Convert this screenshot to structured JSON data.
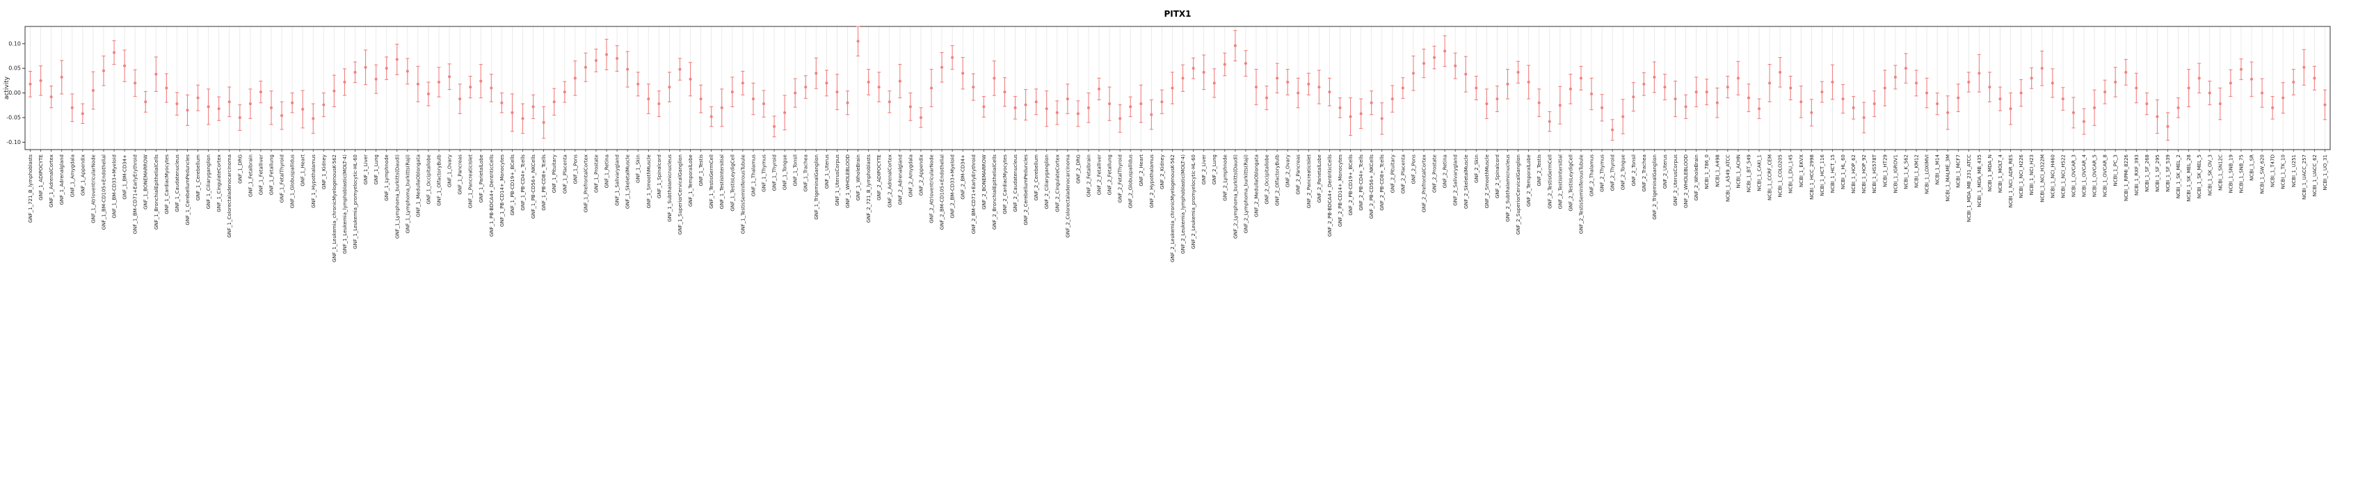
{
  "chart_data": {
    "type": "scatter",
    "title": "PITX1",
    "ylabel": "activity",
    "xlabel": "",
    "legend": "none",
    "grid": "light vertical gridline per sample",
    "point_style": "point with vertical error bar and caps",
    "point_color": "#F08080",
    "axis_color": "#333333",
    "ylim": [
      -0.115,
      0.135
    ],
    "ytick_values": [
      -0.1,
      -0.05,
      0.0,
      0.05,
      0.1
    ],
    "ytick_labels": [
      "-0.10",
      "-0.05",
      "0.00",
      "0.05",
      "0.10"
    ],
    "categories": [
      "GNF_1_721_B_lymphoblasts",
      "GNF_1_ADIPOCYTE",
      "GNF_1_AdrenalCortex",
      "GNF_1_Adrenalgland",
      "GNF_1_Amygdala",
      "GNF_1_Appendix",
      "GNF_1_AtrioventricularNode",
      "GNF_1_BM-CD105+Endothelial",
      "GNF_1_BM-CD33+Myeloid",
      "GNF_1_BM-CD34+",
      "GNF_1_BM-CD71+EarlyErythroid",
      "GNF_1_BONEMARROW",
      "GNF_1_BronchialEpithelialCells",
      "GNF_1_CardiacMyocytes",
      "GNF_1_Caudatenucleus",
      "GNF_1_CerebellumPeduncles",
      "GNF_1_Cerebellum",
      "GNF_1_Ciliaryganglion",
      "GNF_1_CingulateCortex",
      "GNF_1_Colorectaladenocarcinoma",
      "GNF_1_DRG",
      "GNF_1_Fetalbrain",
      "GNF_1_Fetalliver",
      "GNF_1_Fetallung",
      "GNF_1_FetalThyroid",
      "GNF_1_Globuspallidus",
      "GNF_1_Heart",
      "GNF_1_Hypothalamus",
      "GNF_1_Kidney",
      "GNF_1_Leukemia_chronicMyelogenousK-562",
      "GNF_1_Leukemia_lymphoblastic(MOLT-4)",
      "GNF_1_Leukemia_promyelocytic-HL-60",
      "GNF_1_Liver",
      "GNF_1_Lung",
      "GNF_1_Lymphnode",
      "GNF_1_Lymphoma_burkitts(Daudi)",
      "GNF_1_Lymphoma_burkitts(Raji)",
      "GNF_1_MedullaOblongata",
      "GNF_1_Occipitallobe",
      "GNF_1_OlfactoryBulb",
      "GNF_1_Ovary",
      "GNF_1_Pancreas",
      "GNF_1_PancreaticIslet",
      "GNF_1_ParietalLobe",
      "GNF_1_PB-BDCA4+_DentriticCells",
      "GNF_1_PB-CD14+_Monocytes",
      "GNF_1_PB-CD19+_BCells",
      "GNF_1_PB-CD4+_Tcells",
      "GNF_1_PB-CD56+_NKCells",
      "GNF_1_PB-CD8+_Tcells",
      "GNF_1_Pituitary",
      "GNF_1_Placenta",
      "GNF_1_Pons",
      "GNF_1_PrefrontalCortex",
      "GNF_1_Prostate",
      "GNF_1_Retina",
      "GNF_1_Salivarygland",
      "GNF_1_SkeletalMuscle",
      "GNF_1_Skin",
      "GNF_1_SmoothMuscle",
      "GNF_1_Spinalcord",
      "GNF_1_Subthalamicnucleus",
      "GNF_1_SuperiorCervicalGanglion",
      "GNF_1_TemporalLobe",
      "GNF_1_Testis",
      "GNF_1_TestisGermCell",
      "GNF_1_TestisIntersitial",
      "GNF_1_TestisLeydigCell",
      "GNF_1_TestisSeminiferousTubule",
      "GNF_1_Thalamus",
      "GNF_1_Thymus",
      "GNF_1_Thyroid",
      "GNF_1_Tongue",
      "GNF_1_Tonsil",
      "GNF_1_Trachea",
      "GNF_1_TrigeminalGanglion",
      "GNF_1_Uterus",
      "GNF_1_UterusCorpus",
      "GNF_1_WHOLEBLOOD",
      "GNF_1_WholeBrain",
      "GNF_2_721_B_lymphoblasts",
      "GNF_2_ADIPOCYTE",
      "GNF_2_AdrenalCortex",
      "GNF_2_Adrenalgland",
      "GNF_2_Amygdala",
      "GNF_2_Appendix",
      "GNF_2_AtrioventricularNode",
      "GNF_2_BM-CD105+Endothelial",
      "GNF_2_BM-CD33+Myeloid",
      "GNF_2_BM-CD34+",
      "GNF_2_BM-CD71+EarlyErythroid",
      "GNF_2_BONEMARROW",
      "GNF_2_BronchialEpithelialCells",
      "GNF_2_CardiacMyocytes",
      "GNF_2_Caudatenucleus",
      "GNF_2_CerebellumPeduncles",
      "GNF_2_Cerebellum",
      "GNF_2_Ciliaryganglion",
      "GNF_2_CingulateCortex",
      "GNF_2_Colorectaladenocarcinoma",
      "GNF_2_DRG",
      "GNF_2_Fetalbrain",
      "GNF_2_Fetalliver",
      "GNF_2_Fetallung",
      "GNF_2_FetalThyroid",
      "GNF_2_Globuspallidus",
      "GNF_2_Heart",
      "GNF_2_Hypothalamus",
      "GNF_2_Kidney",
      "GNF_2_Leukemia_chronicMyelogenousK-562",
      "GNF_2_Leukemia_lymphoblastic(MOLT-4)",
      "GNF_2_Leukemia_promyelocytic-HL-60",
      "GNF_2_Liver",
      "GNF_2_Lung",
      "GNF_2_Lymphnode",
      "GNF_2_Lymphoma_burkitts(Daudi)",
      "GNF_2_Lymphoma_burkitts(Raji)",
      "GNF_2_MedullaOblongata",
      "GNF_2_Occipitallobe",
      "GNF_2_OlfactoryBulb",
      "GNF_2_Ovary",
      "GNF_2_Pancreas",
      "GNF_2_PancreaticIslet",
      "GNF_2_ParietalLobe",
      "GNF_2_PB-BDCA4+_DentriticCells",
      "GNF_2_PB-CD14+_Monocytes",
      "GNF_2_PB-CD19+_BCells",
      "GNF_2_PB-CD4+_Tcells",
      "GNF_2_PB-CD56+_NKCells",
      "GNF_2_PB-CD8+_Tcells",
      "GNF_2_Pituitary",
      "GNF_2_Placenta",
      "GNF_2_Pons",
      "GNF_2_PrefrontalCortex",
      "GNF_2_Prostate",
      "GNF_2_Retina",
      "GNF_2_Salivarygland",
      "GNF_2_SkeletalMuscle",
      "GNF_2_Skin",
      "GNF_2_SmoothMuscle",
      "GNF_2_Spinalcord",
      "GNF_2_Subthalamicnucleus",
      "GNF_2_SuperiorCervicalGanglion",
      "GNF_2_TemporalLobe",
      "GNF_2_Testis",
      "GNF_2_TestisGermCell",
      "GNF_2_TestisIntersitial",
      "GNF_2_TestisLeydigCell",
      "GNF_2_TestisSeminiferousTubule",
      "GNF_2_Thalamus",
      "GNF_2_Thymus",
      "GNF_2_Thyroid",
      "GNF_2_Tongue",
      "GNF_2_Tonsil",
      "GNF_2_Trachea",
      "GNF_2_TrigeminalGanglion",
      "GNF_2_Uterus",
      "GNF_2_UterusCorpus",
      "GNF_2_WHOLEBLOOD",
      "GNF_2_WholeBrain",
      "NCBI_1_786_0",
      "NCBI_1_A498",
      "NCBI_1_A549_ATCC",
      "NCBI_1_ACHN",
      "NCBI_1_BT_549",
      "NCBI_1_CAKI_1",
      "NCBI_1_CCRF_CEM",
      "NCBI_1_COLO205",
      "NCBI_1_DU_145",
      "NCBI_1_EKVX",
      "NCBI_1_HCC_2998",
      "NCBI_1_HCT_116",
      "NCBI_1_HCT_15",
      "NCBI_1_HL_60",
      "NCBI_1_HOP_62",
      "NCBI_1_HOP_92",
      "NCBI_1_HS578T",
      "NCBI_1_HT29",
      "NCBI_1_IGROV1",
      "NCBI_1_K_562",
      "NCBI_1_KM12",
      "NCBI_1_LOXIMVI",
      "NCBI_1_M14",
      "NCBI_1_MALME_3M",
      "NCBI_1_MCF7",
      "NCBI_1_MDA_MB_231_ATCC",
      "NCBI_1_MDA_MB_435",
      "NCBI_1_MDA_N",
      "NCBI_1_MOLT_4",
      "NCBI_1_NCI_ADR_RES",
      "NCBI_1_NCI_H226",
      "NCBI_1_NCI_H23",
      "NCBI_1_NCI_H322M",
      "NCBI_1_NCI_H460",
      "NCBI_1_NCI_H522",
      "NCBI_1_OVCAR_3",
      "NCBI_1_OVCAR_4",
      "NCBI_1_OVCAR_5",
      "NCBI_1_OVCAR_8",
      "NCBI_1_PC_3",
      "NCBI_1_RPMI_8226",
      "NCBI_1_RXF_393",
      "NCBI_1_SF_268",
      "NCBI_1_SF_295",
      "NCBI_1_SF_539",
      "NCBI_1_SK_MEL_2",
      "NCBI_1_SK_MEL_28",
      "NCBI_1_SK_MEL_5",
      "NCBI_1_SK_OV_3",
      "NCBI_1_SN12C",
      "NCBI_1_SNB_19",
      "NCBI_1_SNB_75",
      "NCBI_1_SR",
      "NCBI_1_SW_620",
      "NCBI_1_T47D",
      "NCBI_1_TK_10",
      "NCBI_1_U251",
      "NCBI_1_UACC_257",
      "NCBI_1_UACC_62",
      "NCBI_1_UO_31"
    ],
    "values": [
      0.018,
      0.025,
      -0.008,
      0.032,
      -0.03,
      -0.042,
      0.005,
      0.045,
      0.082,
      0.055,
      0.02,
      -0.018,
      0.038,
      0.01,
      -0.022,
      -0.035,
      -0.01,
      -0.028,
      -0.032,
      -0.018,
      -0.05,
      -0.022,
      0.002,
      -0.03,
      -0.046,
      -0.02,
      -0.033,
      -0.052,
      -0.024,
      0.004,
      0.022,
      0.042,
      0.052,
      0.028,
      0.05,
      0.068,
      0.044,
      0.018,
      -0.002,
      0.022,
      0.033,
      -0.012,
      0.012,
      0.024,
      0.01,
      -0.02,
      -0.04,
      -0.052,
      -0.028,
      -0.06,
      -0.018,
      0.002,
      0.03,
      0.052,
      0.066,
      0.078,
      0.07,
      0.048,
      0.018,
      -0.012,
      -0.022,
      0.012,
      0.048,
      0.028,
      -0.012,
      -0.048,
      -0.03,
      0.002,
      0.02,
      -0.012,
      -0.022,
      -0.068,
      -0.04,
      0.0,
      0.012,
      0.04,
      0.02,
      0.002,
      -0.02,
      0.105,
      0.022,
      0.012,
      -0.018,
      0.024,
      -0.028,
      -0.05,
      0.01,
      0.052,
      0.072,
      0.04,
      0.012,
      -0.028,
      0.03,
      0.002,
      -0.03,
      -0.024,
      -0.018,
      -0.032,
      -0.04,
      -0.012,
      -0.042,
      -0.03,
      0.008,
      -0.022,
      -0.052,
      -0.028,
      -0.022,
      -0.044,
      -0.018,
      0.01,
      0.03,
      0.05,
      0.042,
      0.02,
      0.058,
      0.096,
      0.06,
      0.012,
      -0.01,
      0.03,
      0.022,
      0.0,
      0.018,
      0.012,
      0.002,
      -0.03,
      -0.048,
      -0.042,
      -0.02,
      -0.052,
      -0.012,
      0.01,
      0.04,
      0.06,
      0.072,
      0.085,
      0.055,
      0.038,
      0.01,
      -0.022,
      -0.012,
      0.018,
      0.042,
      0.022,
      -0.02,
      -0.058,
      -0.025,
      0.008,
      0.03,
      -0.002,
      -0.03,
      -0.075,
      -0.048,
      -0.008,
      0.018,
      0.032,
      0.012,
      -0.012,
      -0.028,
      0.002,
      0.002,
      -0.02,
      0.012,
      0.03,
      -0.01,
      -0.032,
      0.02,
      0.042,
      0.01,
      -0.018,
      -0.04,
      0.002,
      0.022,
      -0.012,
      -0.03,
      -0.05,
      -0.022,
      0.01,
      0.032,
      0.05,
      0.02,
      0.0,
      -0.022,
      -0.04,
      -0.01,
      0.022,
      0.04,
      0.012,
      -0.012,
      -0.032,
      0.0,
      0.03,
      0.05,
      0.02,
      -0.012,
      -0.04,
      -0.058,
      -0.03,
      0.002,
      0.022,
      0.042,
      0.01,
      -0.022,
      -0.048,
      -0.068,
      -0.03,
      0.01,
      0.03,
      0.0,
      -0.022,
      0.02,
      0.048,
      0.028,
      0.0,
      -0.03,
      -0.01,
      0.022,
      0.052,
      0.03,
      -0.024
    ],
    "errors": [
      0.026,
      0.03,
      0.022,
      0.034,
      0.028,
      0.02,
      0.038,
      0.03,
      0.024,
      0.032,
      0.027,
      0.021,
      0.035,
      0.029,
      0.023,
      0.031,
      0.026,
      0.036,
      0.024,
      0.03,
      0.026,
      0.03,
      0.022,
      0.034,
      0.028,
      0.02,
      0.038,
      0.03,
      0.024,
      0.032,
      0.027,
      0.021,
      0.035,
      0.029,
      0.023,
      0.031,
      0.026,
      0.036,
      0.024,
      0.03,
      0.026,
      0.03,
      0.022,
      0.034,
      0.028,
      0.02,
      0.038,
      0.03,
      0.024,
      0.032,
      0.027,
      0.021,
      0.035,
      0.029,
      0.023,
      0.031,
      0.026,
      0.036,
      0.024,
      0.03,
      0.026,
      0.03,
      0.022,
      0.034,
      0.028,
      0.02,
      0.038,
      0.03,
      0.024,
      0.032,
      0.027,
      0.021,
      0.035,
      0.029,
      0.023,
      0.031,
      0.026,
      0.036,
      0.024,
      0.03,
      0.026,
      0.03,
      0.022,
      0.034,
      0.028,
      0.02,
      0.038,
      0.03,
      0.024,
      0.032,
      0.027,
      0.021,
      0.035,
      0.029,
      0.023,
      0.031,
      0.026,
      0.036,
      0.024,
      0.03,
      0.026,
      0.03,
      0.022,
      0.034,
      0.028,
      0.02,
      0.038,
      0.03,
      0.024,
      0.032,
      0.027,
      0.021,
      0.035,
      0.029,
      0.023,
      0.031,
      0.026,
      0.036,
      0.024,
      0.03,
      0.026,
      0.03,
      0.022,
      0.034,
      0.028,
      0.02,
      0.038,
      0.03,
      0.024,
      0.032,
      0.027,
      0.021,
      0.035,
      0.029,
      0.023,
      0.031,
      0.026,
      0.036,
      0.024,
      0.03,
      0.026,
      0.03,
      0.022,
      0.034,
      0.028,
      0.02,
      0.038,
      0.03,
      0.024,
      0.032,
      0.027,
      0.021,
      0.035,
      0.029,
      0.023,
      0.031,
      0.026,
      0.036,
      0.024,
      0.03,
      0.026,
      0.03,
      0.022,
      0.034,
      0.028,
      0.02,
      0.038,
      0.03,
      0.024,
      0.032,
      0.027,
      0.021,
      0.035,
      0.029,
      0.023,
      0.031,
      0.026,
      0.036,
      0.024,
      0.03,
      0.026,
      0.03,
      0.022,
      0.034,
      0.028,
      0.02,
      0.038,
      0.03,
      0.024,
      0.032,
      0.027,
      0.021,
      0.035,
      0.029,
      0.023,
      0.031,
      0.026,
      0.036,
      0.024,
      0.03,
      0.026,
      0.03,
      0.022,
      0.034,
      0.028,
      0.02,
      0.038,
      0.03,
      0.024,
      0.032,
      0.027,
      0.021,
      0.035,
      0.029,
      0.023,
      0.031,
      0.026,
      0.036,
      0.024,
      0.03
    ]
  }
}
